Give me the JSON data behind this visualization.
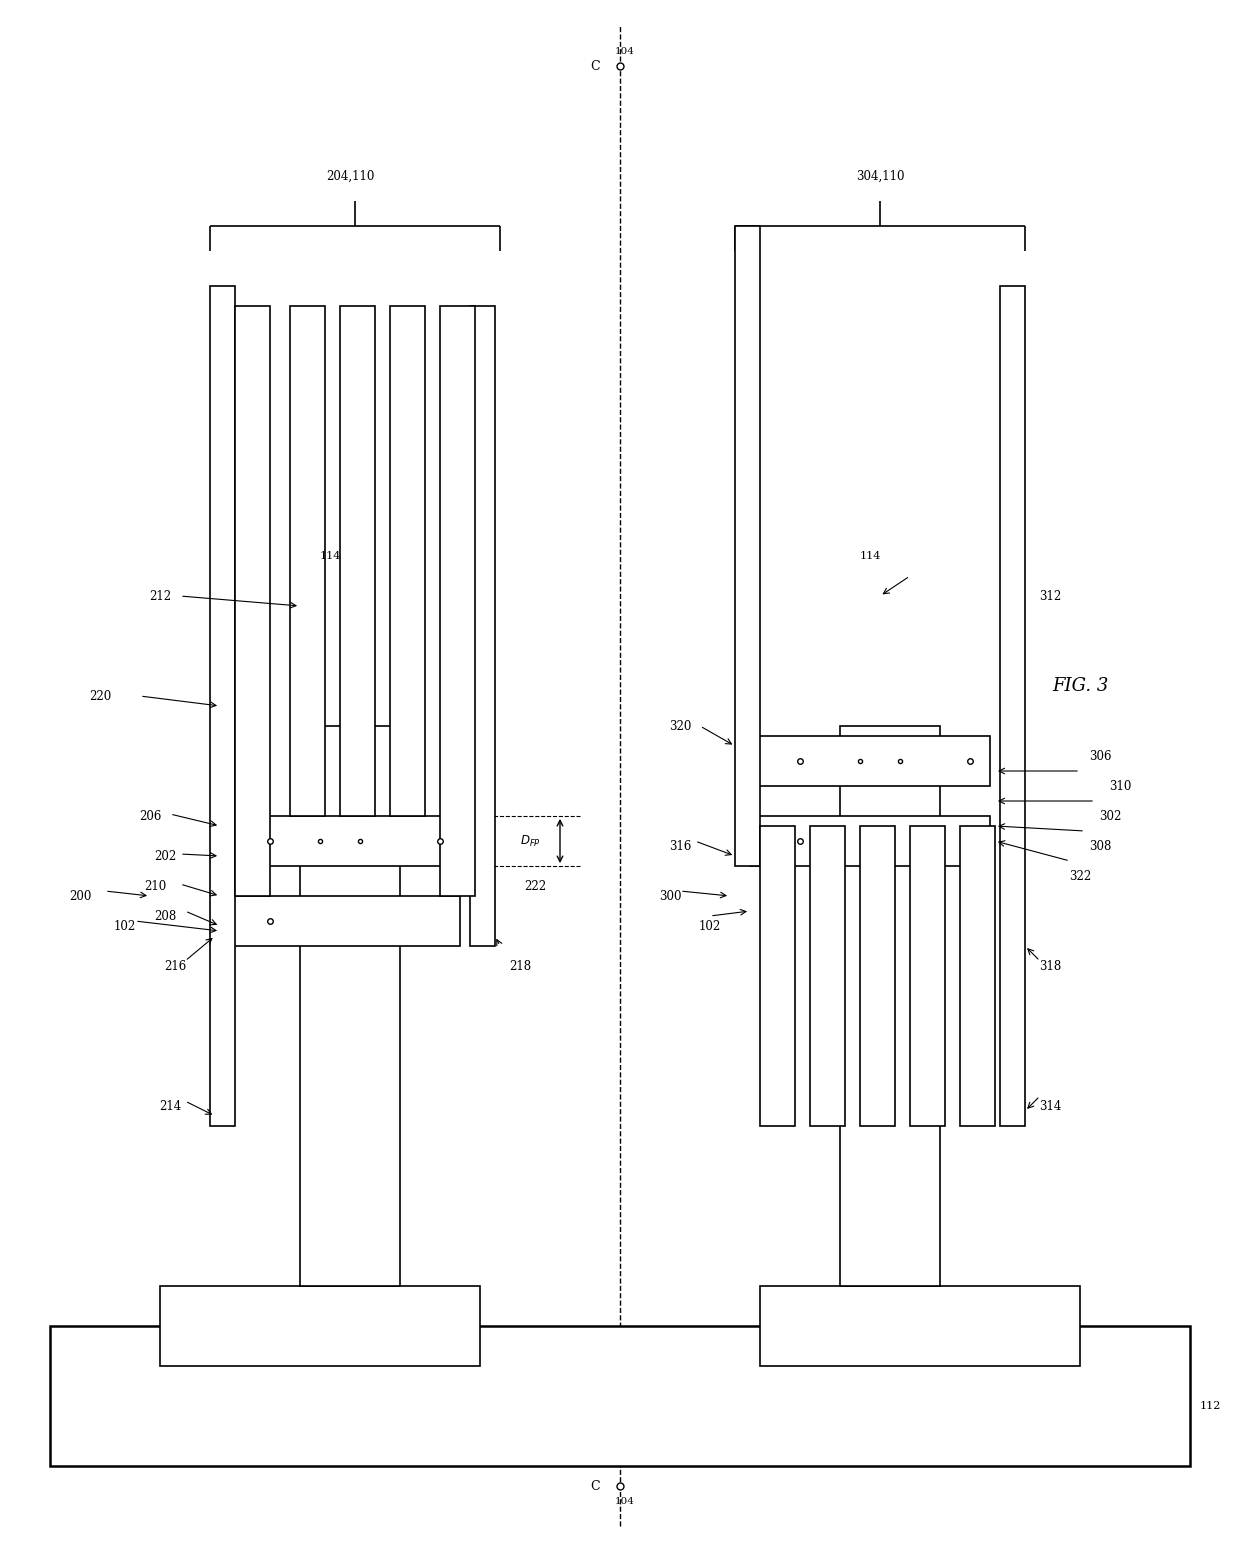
{
  "bg_color": "#ffffff",
  "line_color": "#000000",
  "fig_width": 12.4,
  "fig_height": 15.46,
  "fig_label": "FIG. 3"
}
